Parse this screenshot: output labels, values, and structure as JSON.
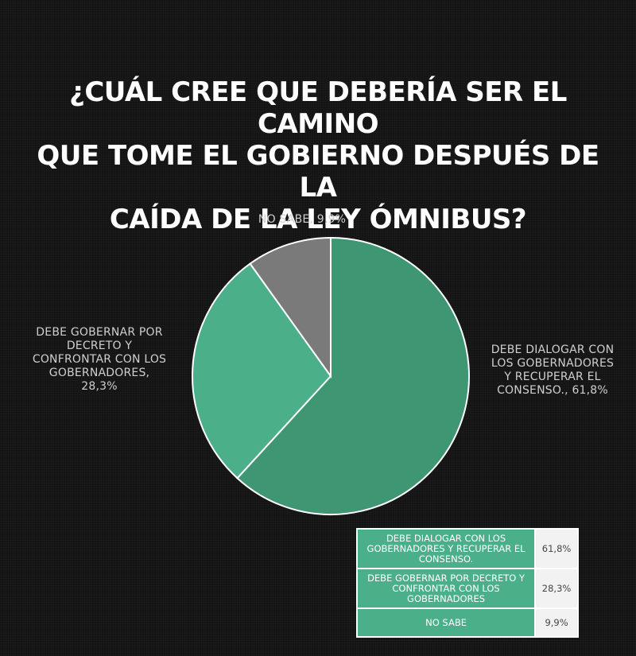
{
  "title": "¿CUÁL CREE QUE DEBERÍA SER EL CAMINO\nQUE TOME EL GOBIERNO DESPUÉS DE LA\nCAÍDA DE LA LEY ÓMNIBUS?",
  "labels": {
    "no_sabe": "NO SABE, 9,9%",
    "decreto": "DEBE GOBERNAR POR\nDECRETO Y\nCONFRONTAR CON LOS\nGOBERNADORES,\n28,3%",
    "dialogar": "DEBE DIALOGAR CON\nLOS GOBERNADORES\nY RECUPERAR EL\nCONSENSO., 61,8%"
  },
  "colors": {
    "background": "#141414",
    "slice_dialogar": "#3f9673",
    "slice_decreto": "#4bb08a",
    "slice_nosabe": "#7a7a7a",
    "slice_stroke": "#ffffff",
    "legend_category": "#4bb08a"
  },
  "legend": {
    "rows": [
      {
        "category": "DEBE DIALOGAR CON LOS GOBERNADORES Y RECUPERAR EL CONSENSO.",
        "value": "61,8%"
      },
      {
        "category": "DEBE GOBERNAR POR DECRETO Y CONFRONTAR CON LOS GOBERNADORES",
        "value": "28,3%"
      },
      {
        "category": "NO SABE",
        "value": "9,9%"
      }
    ]
  },
  "chart_data": {
    "type": "pie",
    "title": "¿CUÁL CREE QUE DEBERÍA SER EL CAMINO QUE TOME EL GOBIERNO DESPUÉS DE LA CAÍDA DE LA LEY ÓMNIBUS?",
    "start_angle_deg": 0,
    "direction": "clockwise",
    "categories": [
      "DEBE DIALOGAR CON LOS GOBERNADORES Y RECUPERAR EL CONSENSO.",
      "DEBE GOBERNAR POR DECRETO Y CONFRONTAR CON LOS GOBERNADORES",
      "NO SABE"
    ],
    "values": [
      61.8,
      28.3,
      9.9
    ],
    "unit": "%"
  }
}
